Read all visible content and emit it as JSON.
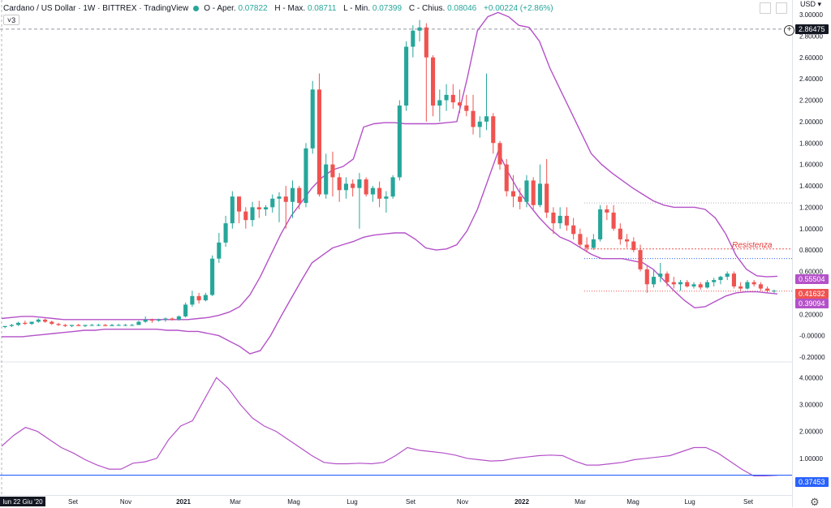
{
  "header": {
    "symbol_title": "Cardano / US Dollar · 1W · BITTREX · TradingView",
    "open_label": "O - Aper.",
    "open_value": "0.07822",
    "high_label": "H - Max.",
    "high_value": "0.08711",
    "low_label": "L - Min.",
    "low_value": "0.07399",
    "close_label": "C - Chius.",
    "close_value": "0.08046",
    "change_value": "+0.00224 (+2.86%)",
    "indicator_toggle": "3"
  },
  "currency_label": "USD",
  "annotation": "Resistenza",
  "price_tags": {
    "crosshair": "2.86475",
    "upper_band": "0.55504",
    "last_price": "0.41632",
    "lower_band": "0.39094",
    "oscillator": "0.37453"
  },
  "colors": {
    "up": "#26a69a",
    "down": "#ef5350",
    "band": "#b451c8",
    "blue_line": "#2962ff",
    "tag_dark": "#131722"
  },
  "chart_data": {
    "type": "candlestick",
    "x_tick_labels": [
      "lun 22 Giu '20",
      "Set",
      "Nov",
      "2021",
      "Mar",
      "Mag",
      "Lug",
      "Set",
      "Nov",
      "2022",
      "Mar",
      "Mag",
      "Lug",
      "Set"
    ],
    "main_pane": {
      "y_ticks": [
        "-0.20000",
        "-0.00000",
        "0.20000",
        "0.40000",
        "0.60000",
        "0.80000",
        "1.00000",
        "1.20000",
        "1.40000",
        "1.60000",
        "1.80000",
        "2.00000",
        "2.20000",
        "2.40000",
        "2.60000",
        "2.80000",
        "3.00000"
      ],
      "ylim": [
        -0.2,
        3.0
      ],
      "candles": [
        [
          0.08,
          0.09,
          0.07,
          0.09
        ],
        [
          0.09,
          0.11,
          0.08,
          0.1
        ],
        [
          0.1,
          0.13,
          0.09,
          0.12
        ],
        [
          0.12,
          0.14,
          0.1,
          0.11
        ],
        [
          0.11,
          0.13,
          0.1,
          0.13
        ],
        [
          0.13,
          0.16,
          0.12,
          0.15
        ],
        [
          0.15,
          0.16,
          0.12,
          0.13
        ],
        [
          0.13,
          0.14,
          0.1,
          0.11
        ],
        [
          0.11,
          0.12,
          0.09,
          0.1
        ],
        [
          0.1,
          0.11,
          0.08,
          0.09
        ],
        [
          0.09,
          0.1,
          0.08,
          0.1
        ],
        [
          0.1,
          0.11,
          0.09,
          0.09
        ],
        [
          0.09,
          0.1,
          0.08,
          0.1
        ],
        [
          0.1,
          0.11,
          0.09,
          0.1
        ],
        [
          0.1,
          0.11,
          0.09,
          0.1
        ],
        [
          0.1,
          0.11,
          0.09,
          0.09
        ],
        [
          0.09,
          0.11,
          0.09,
          0.1
        ],
        [
          0.1,
          0.11,
          0.09,
          0.1
        ],
        [
          0.1,
          0.11,
          0.09,
          0.1
        ],
        [
          0.1,
          0.11,
          0.09,
          0.1
        ],
        [
          0.1,
          0.14,
          0.1,
          0.13
        ],
        [
          0.13,
          0.18,
          0.12,
          0.15
        ],
        [
          0.15,
          0.16,
          0.12,
          0.14
        ],
        [
          0.14,
          0.16,
          0.13,
          0.15
        ],
        [
          0.15,
          0.17,
          0.13,
          0.16
        ],
        [
          0.16,
          0.17,
          0.14,
          0.15
        ],
        [
          0.15,
          0.19,
          0.14,
          0.18
        ],
        [
          0.18,
          0.31,
          0.17,
          0.29
        ],
        [
          0.29,
          0.42,
          0.27,
          0.37
        ],
        [
          0.37,
          0.4,
          0.3,
          0.33
        ],
        [
          0.33,
          0.4,
          0.32,
          0.38
        ],
        [
          0.38,
          0.75,
          0.37,
          0.72
        ],
        [
          0.72,
          0.96,
          0.68,
          0.87
        ],
        [
          0.87,
          1.12,
          0.83,
          1.05
        ],
        [
          1.05,
          1.35,
          1.0,
          1.3
        ],
        [
          1.3,
          1.3,
          1.05,
          1.16
        ],
        [
          1.16,
          1.2,
          1.0,
          1.08
        ],
        [
          1.08,
          1.25,
          1.02,
          1.2
        ],
        [
          1.2,
          1.26,
          1.1,
          1.18
        ],
        [
          1.18,
          1.22,
          1.12,
          1.2
        ],
        [
          1.2,
          1.32,
          1.15,
          1.28
        ],
        [
          1.28,
          1.34,
          1.06,
          1.3
        ],
        [
          1.3,
          1.4,
          1.0,
          1.25
        ],
        [
          1.25,
          1.45,
          1.1,
          1.38
        ],
        [
          1.38,
          1.4,
          1.18,
          1.24
        ],
        [
          1.24,
          1.8,
          1.2,
          1.75
        ],
        [
          1.75,
          2.38,
          1.7,
          2.3
        ],
        [
          2.3,
          2.45,
          1.3,
          1.32
        ],
        [
          1.32,
          1.7,
          1.28,
          1.6
        ],
        [
          1.6,
          1.72,
          1.3,
          1.48
        ],
        [
          1.48,
          1.52,
          1.25,
          1.36
        ],
        [
          1.36,
          1.48,
          1.28,
          1.42
        ],
        [
          1.42,
          1.46,
          1.3,
          1.38
        ],
        [
          1.38,
          1.52,
          1.0,
          1.46
        ],
        [
          1.46,
          1.48,
          1.3,
          1.32
        ],
        [
          1.32,
          1.4,
          1.25,
          1.38
        ],
        [
          1.38,
          1.44,
          1.2,
          1.28
        ],
        [
          1.28,
          1.35,
          1.15,
          1.3
        ],
        [
          1.3,
          1.5,
          1.28,
          1.48
        ],
        [
          1.48,
          2.2,
          1.45,
          2.15
        ],
        [
          2.15,
          2.75,
          2.1,
          2.7
        ],
        [
          2.7,
          2.9,
          2.6,
          2.85
        ],
        [
          2.85,
          2.95,
          2.75,
          2.88
        ],
        [
          2.88,
          2.92,
          2.0,
          2.6
        ],
        [
          2.6,
          2.62,
          2.05,
          2.15
        ],
        [
          2.15,
          2.3,
          2.0,
          2.2
        ],
        [
          2.2,
          2.35,
          2.1,
          2.25
        ],
        [
          2.25,
          2.35,
          2.12,
          2.18
        ],
        [
          2.18,
          2.3,
          2.08,
          2.15
        ],
        [
          2.15,
          2.25,
          2.05,
          2.1
        ],
        [
          2.1,
          2.25,
          1.88,
          1.95
        ],
        [
          1.95,
          2.05,
          1.85,
          2.0
        ],
        [
          2.0,
          2.45,
          1.92,
          2.05
        ],
        [
          2.05,
          2.08,
          1.7,
          1.8
        ],
        [
          1.8,
          1.82,
          1.55,
          1.6
        ],
        [
          1.6,
          1.65,
          1.3,
          1.35
        ],
        [
          1.35,
          1.5,
          1.2,
          1.3
        ],
        [
          1.3,
          1.38,
          1.18,
          1.25
        ],
        [
          1.25,
          1.5,
          1.2,
          1.45
        ],
        [
          1.45,
          1.48,
          1.18,
          1.22
        ],
        [
          1.22,
          1.6,
          1.2,
          1.42
        ],
        [
          1.42,
          1.65,
          1.1,
          1.15
        ],
        [
          1.15,
          1.2,
          0.95,
          1.05
        ],
        [
          1.05,
          1.2,
          1.0,
          1.12
        ],
        [
          1.12,
          1.2,
          0.98,
          1.03
        ],
        [
          1.03,
          1.1,
          0.9,
          0.95
        ],
        [
          0.95,
          1.0,
          0.82,
          0.85
        ],
        [
          0.85,
          0.92,
          0.78,
          0.82
        ],
        [
          0.82,
          0.95,
          0.8,
          0.9
        ],
        [
          0.9,
          1.22,
          0.88,
          1.18
        ],
        [
          1.18,
          1.22,
          1.08,
          1.15
        ],
        [
          1.15,
          1.22,
          0.98,
          1.0
        ],
        [
          1.0,
          1.05,
          0.85,
          0.9
        ],
        [
          0.9,
          0.95,
          0.82,
          0.88
        ],
        [
          0.88,
          0.92,
          0.78,
          0.8
        ],
        [
          0.8,
          0.85,
          0.6,
          0.62
        ],
        [
          0.62,
          0.65,
          0.4,
          0.48
        ],
        [
          0.48,
          0.62,
          0.45,
          0.55
        ],
        [
          0.55,
          0.68,
          0.5,
          0.58
        ],
        [
          0.58,
          0.6,
          0.46,
          0.5
        ],
        [
          0.5,
          0.55,
          0.44,
          0.48
        ],
        [
          0.48,
          0.52,
          0.42,
          0.5
        ],
        [
          0.5,
          0.52,
          0.45,
          0.46
        ],
        [
          0.46,
          0.5,
          0.44,
          0.48
        ],
        [
          0.48,
          0.5,
          0.43,
          0.45
        ],
        [
          0.45,
          0.52,
          0.44,
          0.5
        ],
        [
          0.5,
          0.54,
          0.46,
          0.52
        ],
        [
          0.52,
          0.56,
          0.48,
          0.55
        ],
        [
          0.55,
          0.6,
          0.52,
          0.58
        ],
        [
          0.58,
          0.6,
          0.44,
          0.46
        ],
        [
          0.46,
          0.5,
          0.42,
          0.44
        ],
        [
          0.44,
          0.52,
          0.43,
          0.5
        ],
        [
          0.5,
          0.52,
          0.46,
          0.48
        ],
        [
          0.48,
          0.5,
          0.42,
          0.44
        ],
        [
          0.44,
          0.46,
          0.4,
          0.42
        ],
        [
          0.42,
          0.43,
          0.4,
          0.42
        ]
      ],
      "upper_band": [
        0.16,
        0.17,
        0.18,
        0.18,
        0.17,
        0.16,
        0.15,
        0.15,
        0.15,
        0.15,
        0.15,
        0.15,
        0.15,
        0.15,
        0.15,
        0.15,
        0.15,
        0.15,
        0.15,
        0.16,
        0.17,
        0.19,
        0.22,
        0.27,
        0.38,
        0.55,
        0.75,
        0.95,
        1.12,
        1.25,
        1.38,
        1.48,
        1.55,
        1.58,
        1.65,
        1.95,
        1.98,
        1.99,
        1.99,
        1.98,
        1.98,
        1.98,
        1.98,
        1.99,
        2.0,
        2.4,
        2.85,
        2.98,
        3.02,
        2.98,
        2.9,
        2.88,
        2.75,
        2.5,
        2.3,
        2.1,
        1.9,
        1.7,
        1.6,
        1.52,
        1.45,
        1.38,
        1.32,
        1.26,
        1.22,
        1.2,
        1.2,
        1.2,
        1.18,
        1.1,
        0.95,
        0.75,
        0.62,
        0.56,
        0.55,
        0.555
      ],
      "lower_band": [
        -0.01,
        -0.01,
        -0.01,
        0.0,
        0.01,
        0.02,
        0.03,
        0.04,
        0.05,
        0.05,
        0.06,
        0.06,
        0.06,
        0.06,
        0.06,
        0.06,
        0.05,
        0.05,
        0.04,
        0.04,
        0.02,
        0.0,
        -0.05,
        -0.1,
        -0.17,
        -0.14,
        0.0,
        0.18,
        0.35,
        0.52,
        0.68,
        0.75,
        0.82,
        0.85,
        0.88,
        0.92,
        0.94,
        0.95,
        0.96,
        0.96,
        0.9,
        0.82,
        0.8,
        0.81,
        0.85,
        0.98,
        1.18,
        1.45,
        1.72,
        1.52,
        1.35,
        1.22,
        1.1,
        1.0,
        0.92,
        0.88,
        0.82,
        0.76,
        0.72,
        0.72,
        0.72,
        0.7,
        0.68,
        0.62,
        0.52,
        0.42,
        0.33,
        0.26,
        0.27,
        0.32,
        0.37,
        0.4,
        0.41,
        0.41,
        0.4,
        0.39
      ]
    },
    "oscillator_pane": {
      "y_ticks": [
        "1.00000",
        "2.00000",
        "3.00000",
        "4.00000"
      ],
      "ylim": [
        0.0,
        4.4
      ],
      "values": [
        1.45,
        1.85,
        2.15,
        2.0,
        1.7,
        1.4,
        1.2,
        0.95,
        0.75,
        0.6,
        0.6,
        0.82,
        0.87,
        1.0,
        1.7,
        2.2,
        2.4,
        3.2,
        4.0,
        3.6,
        3.0,
        2.5,
        2.2,
        2.0,
        1.7,
        1.4,
        1.1,
        0.85,
        0.8,
        0.8,
        0.82,
        0.8,
        0.85,
        1.1,
        1.4,
        1.3,
        1.25,
        1.2,
        1.12,
        1.0,
        0.95,
        0.9,
        0.92,
        1.0,
        1.05,
        1.1,
        1.12,
        1.1,
        0.9,
        0.75,
        0.75,
        0.8,
        0.85,
        0.95,
        1.0,
        1.05,
        1.1,
        1.25,
        1.4,
        1.4,
        1.2,
        0.9,
        0.6,
        0.35,
        0.35,
        0.374
      ],
      "reference_level": 0.37453
    }
  }
}
